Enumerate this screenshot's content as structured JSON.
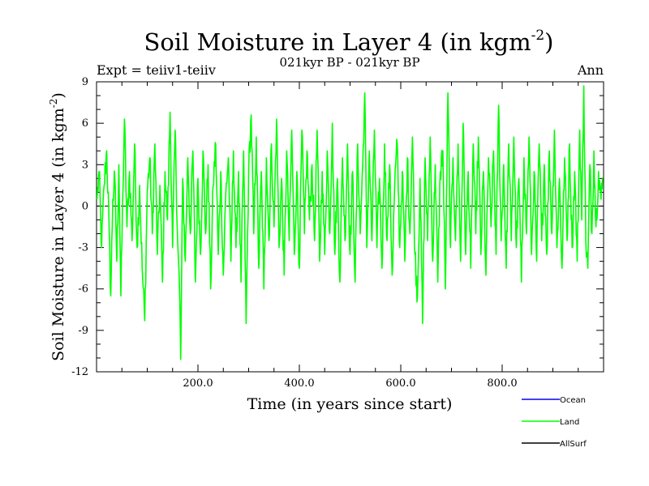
{
  "chart_data": {
    "type": "line",
    "title": "Soil Moisture in Layer 4 (in kgm",
    "title_sup": "-2",
    "title_close": ")",
    "subtitle": "021kyr BP - 021kyr BP",
    "left_note": "Expt = teiiv1-teiiv",
    "right_note": "Ann",
    "xlabel": "Time (in years since start)",
    "ylabel": "Soil Moisture in Layer 4 (in kgm",
    "ylabel_sup": "-2",
    "ylabel_close": ")",
    "xlim": [
      0,
      1000
    ],
    "ylim": [
      -12,
      9
    ],
    "xticks": [
      200,
      400,
      600,
      800
    ],
    "xtick_labels": [
      "200.0",
      "400.0",
      "600.0",
      "800.0"
    ],
    "yticks": [
      9,
      6,
      3,
      0,
      -3,
      -6,
      -9,
      -12
    ],
    "ytick_labels": [
      "9",
      "6",
      "3",
      "0",
      "-3",
      "-6",
      "-9",
      "-12"
    ],
    "zero_line": true,
    "legend_position": "bottom-right",
    "series": [
      {
        "name": "Ocean",
        "color": "#0000ff",
        "values": []
      },
      {
        "name": "Land",
        "color": "#00ff00",
        "x_start": 1,
        "x_step": 1,
        "keypoints": [
          [
            1,
            0.5
          ],
          [
            5,
            2.5
          ],
          [
            10,
            -3.0
          ],
          [
            15,
            1.5
          ],
          [
            20,
            4.0
          ],
          [
            25,
            -2.0
          ],
          [
            28,
            -6.5
          ],
          [
            32,
            0.5
          ],
          [
            36,
            2.0
          ],
          [
            40,
            -4.0
          ],
          [
            44,
            3.0
          ],
          [
            48,
            -6.5
          ],
          [
            52,
            1.0
          ],
          [
            55,
            6.3
          ],
          [
            60,
            -1.5
          ],
          [
            65,
            2.5
          ],
          [
            70,
            -2.5
          ],
          [
            75,
            4.5
          ],
          [
            80,
            -3.0
          ],
          [
            85,
            1.5
          ],
          [
            90,
            -4.5
          ],
          [
            95,
            -8.3
          ],
          [
            100,
            1.0
          ],
          [
            105,
            3.5
          ],
          [
            110,
            -2.0
          ],
          [
            115,
            4.5
          ],
          [
            120,
            -3.5
          ],
          [
            125,
            1.5
          ],
          [
            130,
            -5.5
          ],
          [
            135,
            2.5
          ],
          [
            140,
            -1.0
          ],
          [
            145,
            6.8
          ],
          [
            150,
            -3.0
          ],
          [
            155,
            5.5
          ],
          [
            160,
            -2.5
          ],
          [
            164,
            -6.5
          ],
          [
            166,
            -11.1
          ],
          [
            170,
            2.0
          ],
          [
            175,
            -4.0
          ],
          [
            180,
            3.5
          ],
          [
            185,
            -2.0
          ],
          [
            190,
            4.0
          ],
          [
            195,
            -5.5
          ],
          [
            200,
            2.0
          ],
          [
            205,
            -3.5
          ],
          [
            210,
            4.0
          ],
          [
            215,
            -2.0
          ],
          [
            220,
            3.0
          ],
          [
            225,
            -6.0
          ],
          [
            230,
            1.5
          ],
          [
            235,
            4.5
          ],
          [
            240,
            -3.5
          ],
          [
            245,
            2.5
          ],
          [
            250,
            -5.0
          ],
          [
            255,
            1.0
          ],
          [
            260,
            3.5
          ],
          [
            265,
            -4.0
          ],
          [
            270,
            4.0
          ],
          [
            275,
            -3.0
          ],
          [
            280,
            2.5
          ],
          [
            285,
            -5.5
          ],
          [
            290,
            4.0
          ],
          [
            295,
            -8.5
          ],
          [
            300,
            2.5
          ],
          [
            305,
            6.6
          ],
          [
            310,
            -2.0
          ],
          [
            315,
            5.0
          ],
          [
            320,
            -4.5
          ],
          [
            325,
            2.5
          ],
          [
            330,
            -6.0
          ],
          [
            335,
            3.5
          ],
          [
            340,
            -2.5
          ],
          [
            345,
            4.5
          ],
          [
            350,
            -1.5
          ],
          [
            355,
            6.3
          ],
          [
            360,
            -3.0
          ],
          [
            365,
            2.0
          ],
          [
            370,
            -5.0
          ],
          [
            375,
            4.0
          ],
          [
            380,
            -2.5
          ],
          [
            385,
            5.5
          ],
          [
            390,
            -3.5
          ],
          [
            395,
            2.5
          ],
          [
            400,
            -4.5
          ],
          [
            405,
            5.5
          ],
          [
            410,
            -2.0
          ],
          [
            415,
            4.0
          ],
          [
            420,
            -1.0
          ],
          [
            425,
            3.0
          ],
          [
            430,
            -2.5
          ],
          [
            435,
            5.5
          ],
          [
            440,
            -4.0
          ],
          [
            445,
            2.5
          ],
          [
            450,
            -3.5
          ],
          [
            455,
            4.0
          ],
          [
            460,
            -2.0
          ],
          [
            465,
            6.0
          ],
          [
            470,
            -3.5
          ],
          [
            475,
            2.0
          ],
          [
            480,
            -5.5
          ],
          [
            485,
            3.5
          ],
          [
            490,
            -2.5
          ],
          [
            495,
            4.5
          ],
          [
            500,
            -3.5
          ],
          [
            505,
            2.5
          ],
          [
            510,
            -5.5
          ],
          [
            515,
            4.5
          ],
          [
            520,
            -2.0
          ],
          [
            525,
            3.0
          ],
          [
            529,
            8.2
          ],
          [
            533,
            -3.0
          ],
          [
            538,
            4.0
          ],
          [
            543,
            -2.5
          ],
          [
            548,
            5.5
          ],
          [
            553,
            -3.0
          ],
          [
            558,
            2.0
          ],
          [
            563,
            -4.5
          ],
          [
            568,
            4.5
          ],
          [
            573,
            -2.5
          ],
          [
            578,
            3.0
          ],
          [
            583,
            -5.0
          ],
          [
            588,
            1.5
          ],
          [
            593,
            4.5
          ],
          [
            598,
            -3.0
          ],
          [
            603,
            2.5
          ],
          [
            608,
            -4.0
          ],
          [
            613,
            3.5
          ],
          [
            618,
            -2.0
          ],
          [
            623,
            5.0
          ],
          [
            628,
            -3.5
          ],
          [
            633,
            -6.5
          ],
          [
            638,
            2.0
          ],
          [
            643,
            -8.5
          ],
          [
            648,
            3.5
          ],
          [
            653,
            -2.5
          ],
          [
            658,
            5.0
          ],
          [
            663,
            -4.0
          ],
          [
            668,
            3.0
          ],
          [
            673,
            -5.5
          ],
          [
            678,
            2.5
          ],
          [
            683,
            4.0
          ],
          [
            688,
            -6.0
          ],
          [
            693,
            8.2
          ],
          [
            698,
            -3.0
          ],
          [
            703,
            3.5
          ],
          [
            708,
            -2.5
          ],
          [
            713,
            4.5
          ],
          [
            718,
            -4.0
          ],
          [
            723,
            6.0
          ],
          [
            728,
            -3.5
          ],
          [
            733,
            2.5
          ],
          [
            738,
            -4.5
          ],
          [
            743,
            4.5
          ],
          [
            748,
            -2.0
          ],
          [
            753,
            5.0
          ],
          [
            758,
            -3.5
          ],
          [
            763,
            2.5
          ],
          [
            768,
            -5.0
          ],
          [
            773,
            3.5
          ],
          [
            778,
            -1.5
          ],
          [
            783,
            4.0
          ],
          [
            788,
            -3.5
          ],
          [
            793,
            7.3
          ],
          [
            798,
            -2.5
          ],
          [
            803,
            3.0
          ],
          [
            808,
            -4.5
          ],
          [
            813,
            4.5
          ],
          [
            818,
            -2.5
          ],
          [
            823,
            5.0
          ],
          [
            828,
            -3.0
          ],
          [
            833,
            2.0
          ],
          [
            838,
            -5.5
          ],
          [
            843,
            3.5
          ],
          [
            848,
            -2.0
          ],
          [
            853,
            5.0
          ],
          [
            858,
            -3.5
          ],
          [
            863,
            2.5
          ],
          [
            868,
            -4.0
          ],
          [
            873,
            4.5
          ],
          [
            878,
            -2.5
          ],
          [
            883,
            3.0
          ],
          [
            888,
            -3.5
          ],
          [
            893,
            4.0
          ],
          [
            898,
            -2.0
          ],
          [
            903,
            5.5
          ],
          [
            908,
            -3.0
          ],
          [
            913,
            2.0
          ],
          [
            918,
            -4.5
          ],
          [
            923,
            3.5
          ],
          [
            928,
            -2.5
          ],
          [
            933,
            4.5
          ],
          [
            938,
            -3.0
          ],
          [
            943,
            2.5
          ],
          [
            948,
            -4.0
          ],
          [
            953,
            5.5
          ],
          [
            957,
            -1.0
          ],
          [
            961,
            8.7
          ],
          [
            965,
            -2.5
          ],
          [
            969,
            -4.5
          ],
          [
            973,
            3.0
          ],
          [
            977,
            -2.0
          ],
          [
            981,
            4.0
          ],
          [
            985,
            -1.5
          ],
          [
            990,
            2.5
          ],
          [
            995,
            0.5
          ],
          [
            999,
            2.0
          ]
        ]
      },
      {
        "name": "AllSurf",
        "color": "#000000",
        "values": []
      }
    ]
  }
}
